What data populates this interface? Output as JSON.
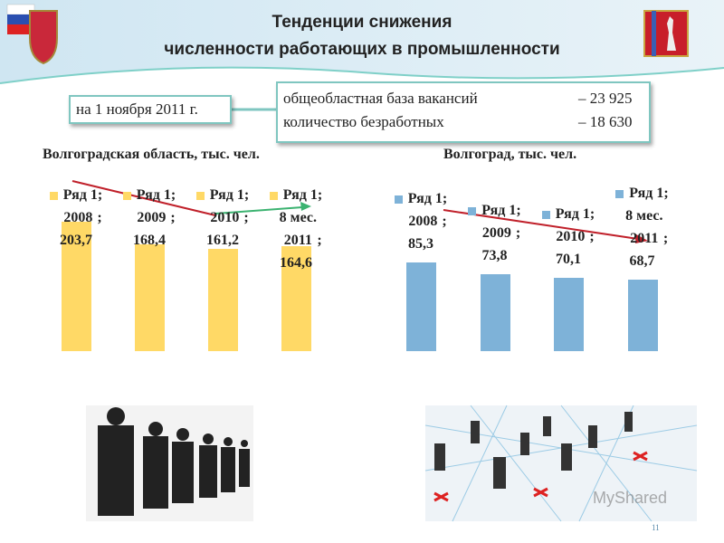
{
  "header": {
    "title_line1": "Тенденции снижения",
    "title_line2": "численности работающих в промышленности"
  },
  "date_box": "на 1 ноября 2011 г.",
  "info_box": {
    "rows": [
      [
        "общеобластная база вакансий",
        "– 23 925"
      ],
      [
        "количество безработных",
        "– 18 630"
      ]
    ]
  },
  "chart_data": [
    {
      "type": "bar",
      "title": "Волгоградская область, тыс. чел.",
      "label_separator": ";",
      "categories": [
        "2008",
        "2009",
        "2010",
        "8 мес. 2011"
      ],
      "series": [
        {
          "name": "Ряд 1",
          "color": "#ffd966",
          "values": [
            203.7,
            168.4,
            161.2,
            164.6
          ],
          "value_labels": [
            "203,7",
            "168,4",
            "161,2",
            "164,6"
          ]
        }
      ]
    },
    {
      "type": "bar",
      "title": "Волгоград, тыс. чел.",
      "label_separator": ";",
      "categories": [
        "2008",
        "2009",
        "2010",
        "8 мес. 2011"
      ],
      "series": [
        {
          "name": "Ряд 1",
          "color": "#7eb2d8",
          "values": [
            85.3,
            73.8,
            70.1,
            68.7
          ],
          "value_labels": [
            "85,3",
            "73,8",
            "70,1",
            "68,7"
          ]
        }
      ]
    }
  ],
  "watermark": "MyShared",
  "page_number": "11"
}
